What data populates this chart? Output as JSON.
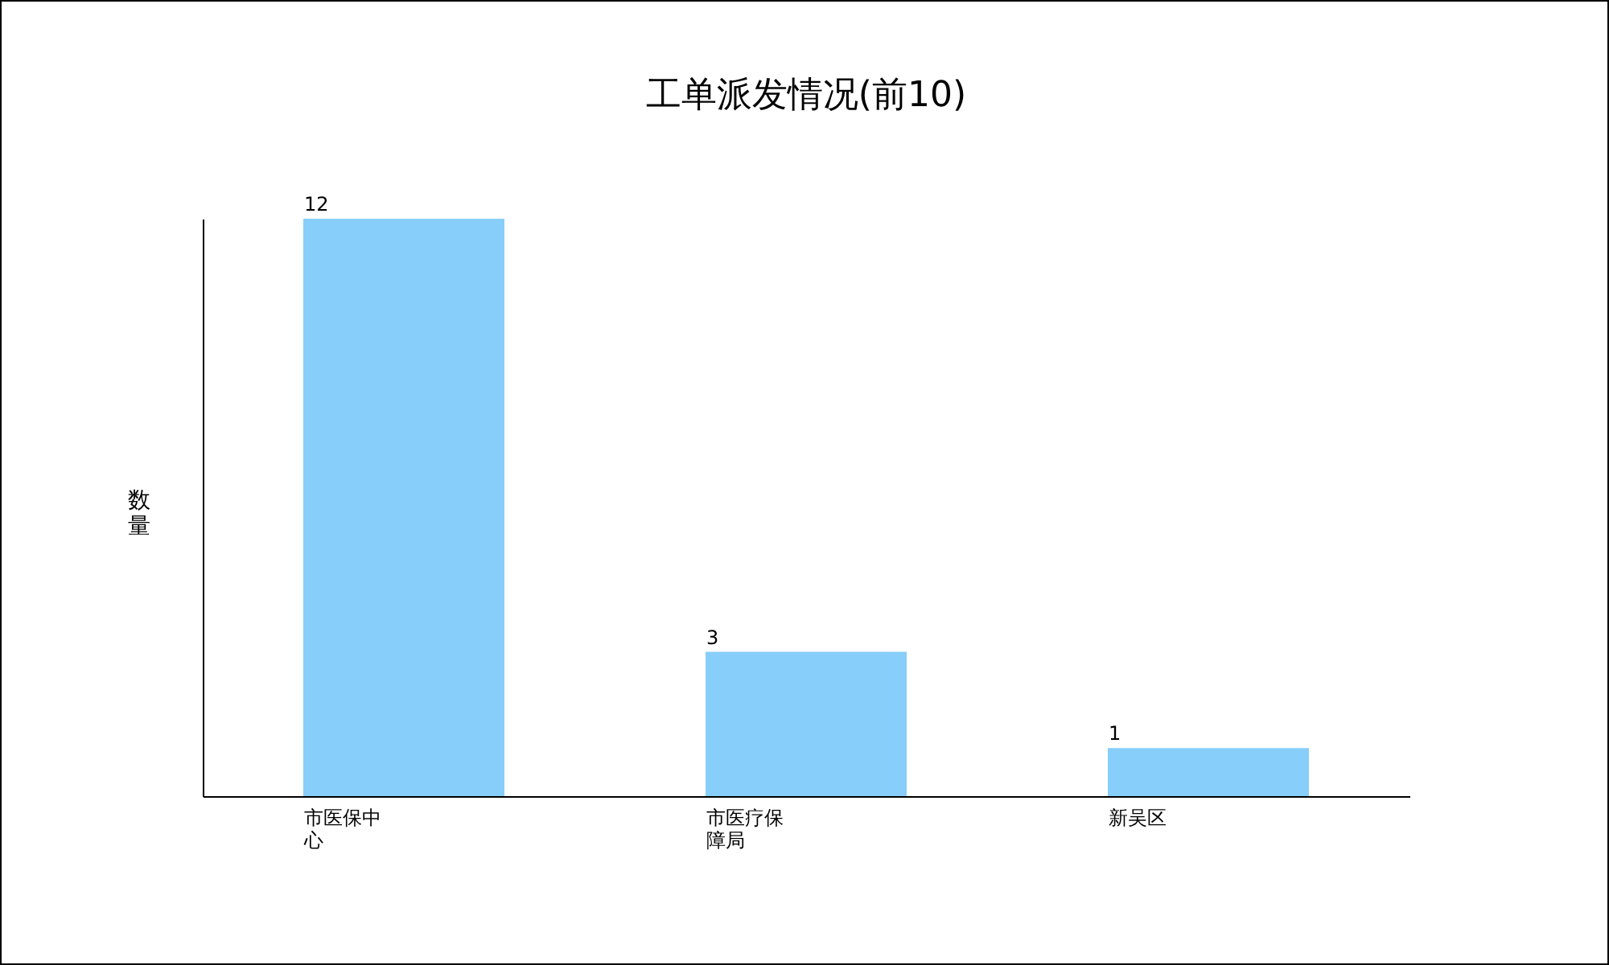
{
  "chart_data": {
    "type": "bar",
    "title": "工单派发情况(前10)",
    "ylabel": "数量",
    "categories": [
      "市医保中心",
      "市医疗保障局",
      "新吴区"
    ],
    "values": [
      12,
      3,
      1
    ],
    "color": "#87cefa",
    "ylim": [
      0,
      12
    ],
    "data_labels": true,
    "grid": false,
    "tick_labels": "x"
  }
}
